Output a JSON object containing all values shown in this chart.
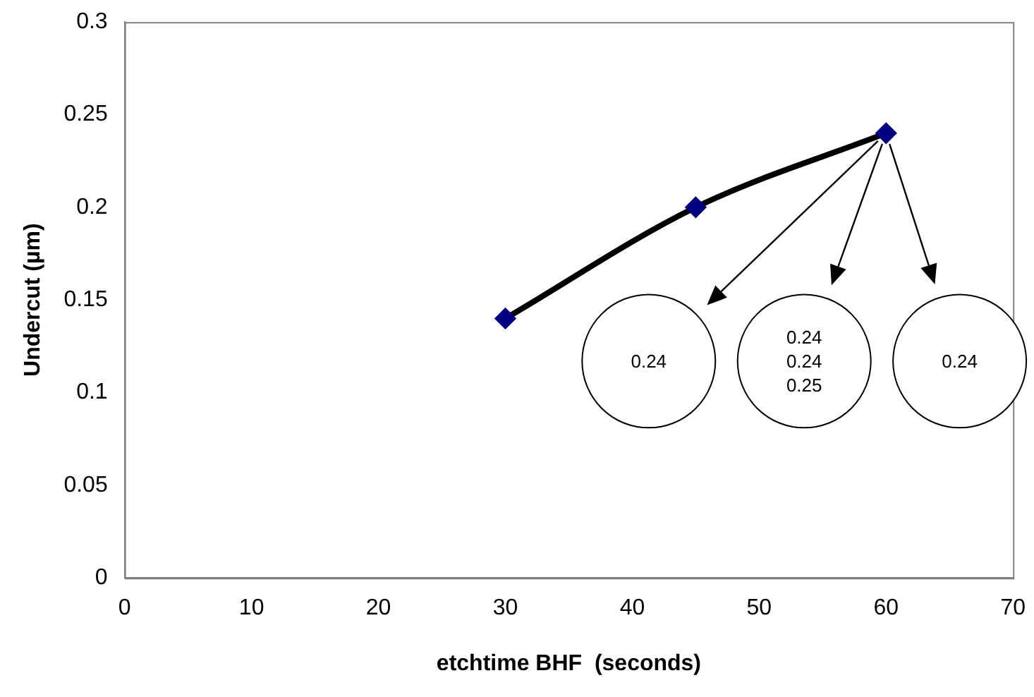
{
  "chart_data": {
    "type": "line",
    "xlabel": "etchtime BHF  (seconds)",
    "ylabel": "Undercut (µm)",
    "xlim": [
      0,
      70
    ],
    "xticks": [
      0,
      10,
      20,
      30,
      40,
      50,
      60,
      70
    ],
    "ylim": [
      0,
      0.3
    ],
    "yticks": [
      0,
      0.05,
      0.1,
      0.15,
      0.2,
      0.25,
      0.3
    ],
    "x": [
      30,
      45,
      60
    ],
    "series": [
      {
        "color": "#000000",
        "values": [
          0.14,
          0.2,
          0.24
        ]
      }
    ],
    "marker": "diamond",
    "grid": false,
    "legend": false,
    "annotations": [
      "0.24",
      "0.24 0.24 0.25",
      "0.24"
    ]
  }
}
